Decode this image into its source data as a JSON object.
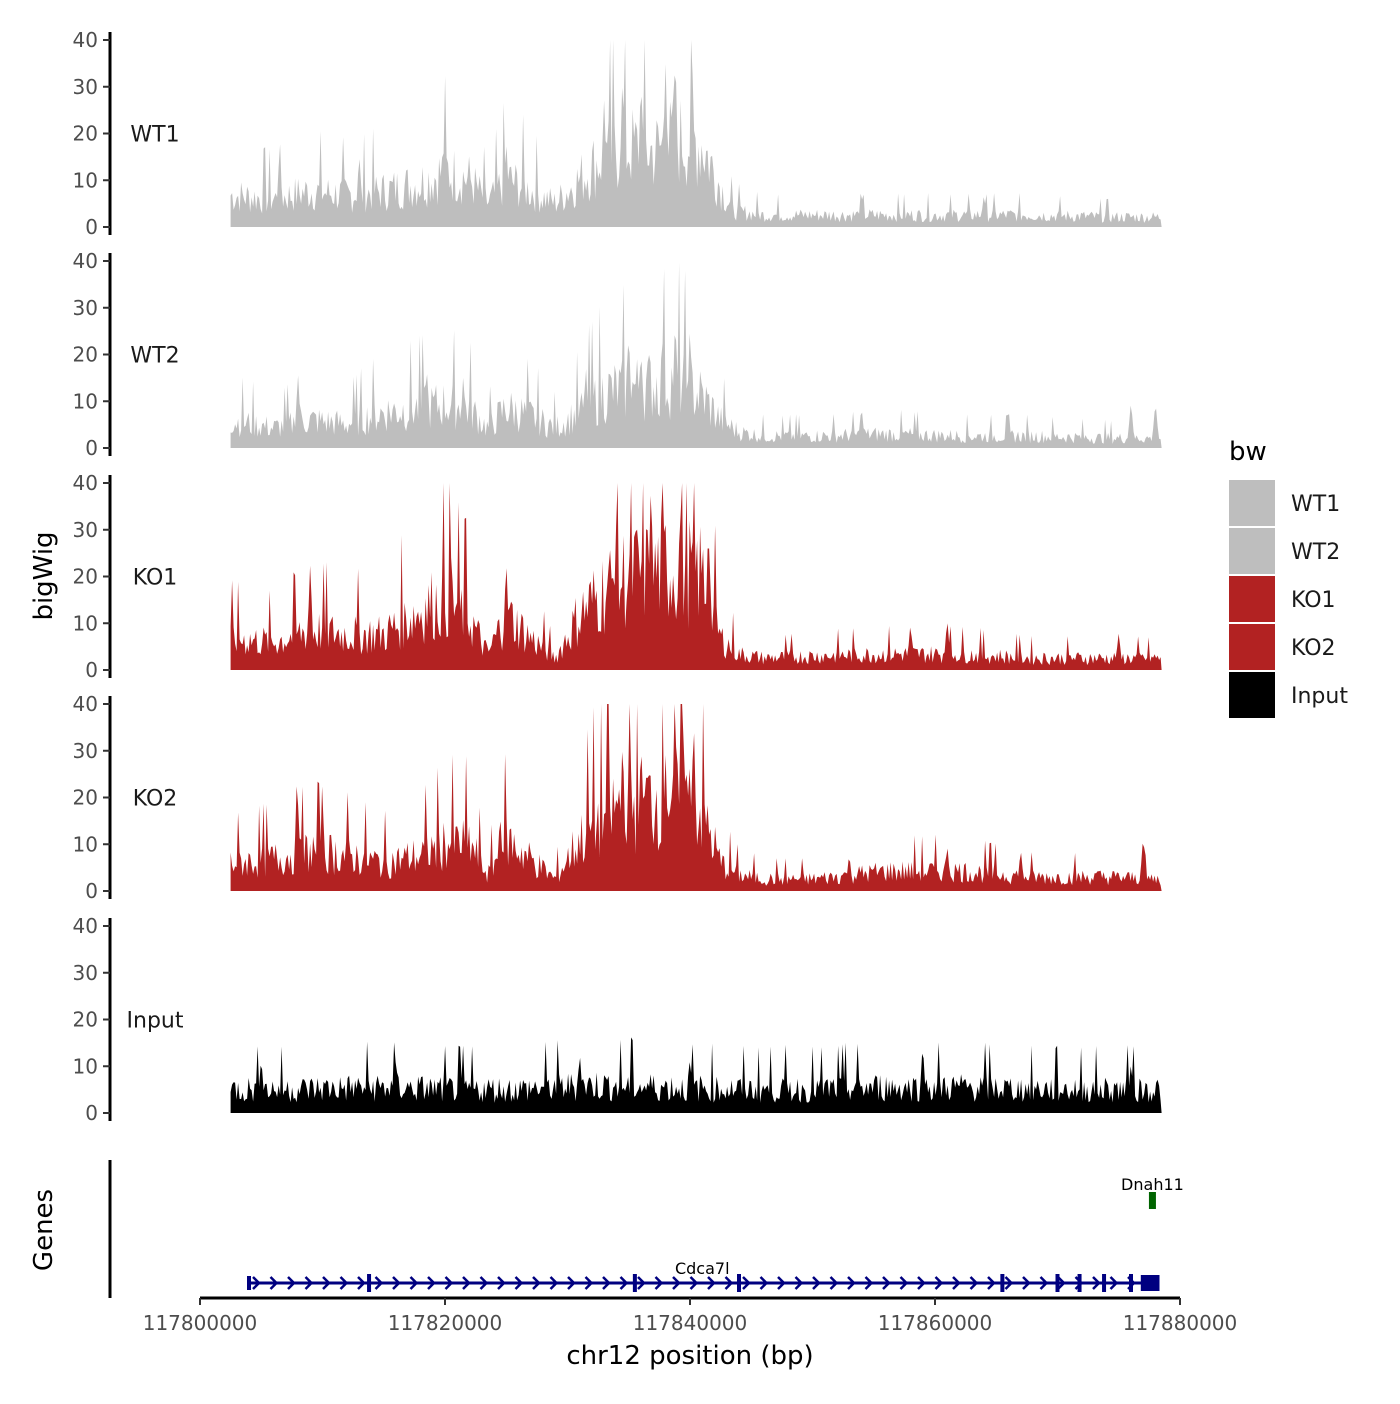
{
  "chart_data": {
    "type": "area",
    "title": "",
    "xlabel": "chr12 position (bp)",
    "ylabel": "bigWig",
    "genes_label": "Genes",
    "xlim": [
      117800000,
      117880000
    ],
    "x_ticks": [
      117800000,
      117820000,
      117840000,
      117860000,
      117880000
    ],
    "x_tick_labels": [
      "117800000",
      "117820000",
      "117840000",
      "117860000",
      "117880000"
    ],
    "ylim": [
      0,
      40
    ],
    "y_ticks": [
      0,
      10,
      20,
      30,
      40
    ],
    "y_tick_labels": [
      "0",
      "10",
      "20",
      "30",
      "40"
    ],
    "data_range": [
      117802500,
      117878500
    ],
    "legend": {
      "title": "bw",
      "position": "right",
      "entries": [
        {
          "label": "WT1",
          "color": "#bebebe"
        },
        {
          "label": "WT2",
          "color": "#bebebe"
        },
        {
          "label": "KO1",
          "color": "#b22222"
        },
        {
          "label": "KO2",
          "color": "#b22222"
        },
        {
          "label": "Input",
          "color": "#000000"
        }
      ]
    },
    "tracks": [
      {
        "name": "WT1",
        "color": "#bebebe",
        "profile": [
          {
            "x": 117802500,
            "y": 8
          },
          {
            "x": 117806000,
            "y": 7
          },
          {
            "x": 117809000,
            "y": 9
          },
          {
            "x": 117812000,
            "y": 8
          },
          {
            "x": 117815000,
            "y": 9
          },
          {
            "x": 117818000,
            "y": 11
          },
          {
            "x": 117820000,
            "y": 14
          },
          {
            "x": 117822000,
            "y": 12
          },
          {
            "x": 117823500,
            "y": 6
          },
          {
            "x": 117825000,
            "y": 12
          },
          {
            "x": 117827000,
            "y": 9
          },
          {
            "x": 117829000,
            "y": 6
          },
          {
            "x": 117831000,
            "y": 12
          },
          {
            "x": 117833000,
            "y": 18
          },
          {
            "x": 117835000,
            "y": 20
          },
          {
            "x": 117837000,
            "y": 19
          },
          {
            "x": 117839000,
            "y": 22
          },
          {
            "x": 117841000,
            "y": 21
          },
          {
            "x": 117842500,
            "y": 10
          },
          {
            "x": 117843500,
            "y": 4
          },
          {
            "x": 117846000,
            "y": 3
          },
          {
            "x": 117850000,
            "y": 3
          },
          {
            "x": 117856000,
            "y": 3
          },
          {
            "x": 117862000,
            "y": 3
          },
          {
            "x": 117868000,
            "y": 3
          },
          {
            "x": 117874000,
            "y": 2.5
          },
          {
            "x": 117878500,
            "y": 2.5
          }
        ],
        "peaks": [
          {
            "x": 117806500,
            "y": 17
          },
          {
            "x": 117813000,
            "y": 16
          },
          {
            "x": 117820000,
            "y": 24
          },
          {
            "x": 117825000,
            "y": 19
          },
          {
            "x": 117833000,
            "y": 28
          },
          {
            "x": 117834500,
            "y": 34
          },
          {
            "x": 117836000,
            "y": 33
          },
          {
            "x": 117838000,
            "y": 36
          },
          {
            "x": 117838800,
            "y": 39
          },
          {
            "x": 117840200,
            "y": 34
          },
          {
            "x": 117854000,
            "y": 7
          },
          {
            "x": 117864000,
            "y": 7
          }
        ]
      },
      {
        "name": "WT2",
        "color": "#bebebe",
        "profile": [
          {
            "x": 117802500,
            "y": 7
          },
          {
            "x": 117806000,
            "y": 5
          },
          {
            "x": 117809000,
            "y": 7
          },
          {
            "x": 117812000,
            "y": 6
          },
          {
            "x": 117815000,
            "y": 9
          },
          {
            "x": 117818000,
            "y": 10
          },
          {
            "x": 117820000,
            "y": 11
          },
          {
            "x": 117822000,
            "y": 10
          },
          {
            "x": 117823500,
            "y": 5
          },
          {
            "x": 117825000,
            "y": 10
          },
          {
            "x": 117827000,
            "y": 8
          },
          {
            "x": 117829000,
            "y": 5
          },
          {
            "x": 117831000,
            "y": 9
          },
          {
            "x": 117833000,
            "y": 14
          },
          {
            "x": 117835000,
            "y": 15
          },
          {
            "x": 117837000,
            "y": 16
          },
          {
            "x": 117839000,
            "y": 17
          },
          {
            "x": 117841000,
            "y": 13
          },
          {
            "x": 117842500,
            "y": 7
          },
          {
            "x": 117844000,
            "y": 4
          },
          {
            "x": 117846000,
            "y": 3
          },
          {
            "x": 117850000,
            "y": 3
          },
          {
            "x": 117856000,
            "y": 3.5
          },
          {
            "x": 117862000,
            "y": 3
          },
          {
            "x": 117868000,
            "y": 3
          },
          {
            "x": 117874000,
            "y": 2.5
          },
          {
            "x": 117878500,
            "y": 2.5
          }
        ],
        "peaks": [
          {
            "x": 117808000,
            "y": 16
          },
          {
            "x": 117818500,
            "y": 18
          },
          {
            "x": 117821500,
            "y": 16
          },
          {
            "x": 117831500,
            "y": 18
          },
          {
            "x": 117835000,
            "y": 26
          },
          {
            "x": 117836000,
            "y": 22
          },
          {
            "x": 117837800,
            "y": 25
          },
          {
            "x": 117838800,
            "y": 29
          },
          {
            "x": 117840000,
            "y": 27
          },
          {
            "x": 117854000,
            "y": 9
          },
          {
            "x": 117876000,
            "y": 10
          },
          {
            "x": 117878000,
            "y": 10
          }
        ]
      },
      {
        "name": "KO1",
        "color": "#b22222",
        "profile": [
          {
            "x": 117802500,
            "y": 8
          },
          {
            "x": 117806000,
            "y": 7
          },
          {
            "x": 117809000,
            "y": 10
          },
          {
            "x": 117812000,
            "y": 9
          },
          {
            "x": 117815000,
            "y": 9
          },
          {
            "x": 117818000,
            "y": 15
          },
          {
            "x": 117820000,
            "y": 18
          },
          {
            "x": 117822000,
            "y": 13
          },
          {
            "x": 117823500,
            "y": 4
          },
          {
            "x": 117825000,
            "y": 14
          },
          {
            "x": 117827000,
            "y": 8
          },
          {
            "x": 117829000,
            "y": 3
          },
          {
            "x": 117831000,
            "y": 14
          },
          {
            "x": 117833000,
            "y": 20
          },
          {
            "x": 117835000,
            "y": 24
          },
          {
            "x": 117837000,
            "y": 25
          },
          {
            "x": 117839000,
            "y": 26
          },
          {
            "x": 117841000,
            "y": 24
          },
          {
            "x": 117842500,
            "y": 8
          },
          {
            "x": 117844000,
            "y": 4
          },
          {
            "x": 117846000,
            "y": 3
          },
          {
            "x": 117850000,
            "y": 3.5
          },
          {
            "x": 117856000,
            "y": 4
          },
          {
            "x": 117862000,
            "y": 4
          },
          {
            "x": 117868000,
            "y": 3
          },
          {
            "x": 117874000,
            "y": 3
          },
          {
            "x": 117878500,
            "y": 3
          }
        ],
        "peaks": [
          {
            "x": 117809000,
            "y": 23
          },
          {
            "x": 117820500,
            "y": 24
          },
          {
            "x": 117825000,
            "y": 24
          },
          {
            "x": 117834000,
            "y": 34
          },
          {
            "x": 117835500,
            "y": 35
          },
          {
            "x": 117836800,
            "y": 39
          },
          {
            "x": 117838000,
            "y": 32
          },
          {
            "x": 117839200,
            "y": 37
          },
          {
            "x": 117841500,
            "y": 32
          },
          {
            "x": 117858000,
            "y": 10
          },
          {
            "x": 117861000,
            "y": 11
          },
          {
            "x": 117875000,
            "y": 8
          }
        ]
      },
      {
        "name": "KO2",
        "color": "#b22222",
        "profile": [
          {
            "x": 117802500,
            "y": 7
          },
          {
            "x": 117806000,
            "y": 8
          },
          {
            "x": 117809000,
            "y": 10
          },
          {
            "x": 117812000,
            "y": 9
          },
          {
            "x": 117815000,
            "y": 7
          },
          {
            "x": 117818000,
            "y": 9
          },
          {
            "x": 117820000,
            "y": 12
          },
          {
            "x": 117822000,
            "y": 12
          },
          {
            "x": 117823500,
            "y": 4
          },
          {
            "x": 117825000,
            "y": 13
          },
          {
            "x": 117827000,
            "y": 8
          },
          {
            "x": 117829000,
            "y": 3
          },
          {
            "x": 117831000,
            "y": 13
          },
          {
            "x": 117833000,
            "y": 19
          },
          {
            "x": 117835000,
            "y": 22
          },
          {
            "x": 117837000,
            "y": 23
          },
          {
            "x": 117839000,
            "y": 25
          },
          {
            "x": 117841000,
            "y": 20
          },
          {
            "x": 117842500,
            "y": 7
          },
          {
            "x": 117844000,
            "y": 4
          },
          {
            "x": 117846000,
            "y": 3
          },
          {
            "x": 117850000,
            "y": 3
          },
          {
            "x": 117856000,
            "y": 5
          },
          {
            "x": 117862000,
            "y": 5
          },
          {
            "x": 117868000,
            "y": 3.5
          },
          {
            "x": 117874000,
            "y": 3.5
          },
          {
            "x": 117878500,
            "y": 3
          }
        ],
        "peaks": [
          {
            "x": 117808000,
            "y": 19
          },
          {
            "x": 117810000,
            "y": 20
          },
          {
            "x": 117824500,
            "y": 17
          },
          {
            "x": 117834500,
            "y": 34
          },
          {
            "x": 117836000,
            "y": 33
          },
          {
            "x": 117838000,
            "y": 30
          },
          {
            "x": 117839500,
            "y": 34
          },
          {
            "x": 117840300,
            "y": 38
          },
          {
            "x": 117853000,
            "y": 8
          },
          {
            "x": 117861000,
            "y": 10
          },
          {
            "x": 117867000,
            "y": 9
          },
          {
            "x": 117877000,
            "y": 12
          }
        ]
      },
      {
        "name": "Input",
        "color": "#000000",
        "profile": [
          {
            "x": 117802500,
            "y": 6
          },
          {
            "x": 117808000,
            "y": 6
          },
          {
            "x": 117814000,
            "y": 6.5
          },
          {
            "x": 117820000,
            "y": 6
          },
          {
            "x": 117826000,
            "y": 6
          },
          {
            "x": 117832000,
            "y": 7
          },
          {
            "x": 117838000,
            "y": 6.5
          },
          {
            "x": 117844000,
            "y": 6
          },
          {
            "x": 117850000,
            "y": 6
          },
          {
            "x": 117856000,
            "y": 6.5
          },
          {
            "x": 117862000,
            "y": 6.5
          },
          {
            "x": 117868000,
            "y": 6
          },
          {
            "x": 117874000,
            "y": 6
          },
          {
            "x": 117878500,
            "y": 6
          }
        ],
        "peaks": [
          {
            "x": 117805000,
            "y": 12
          },
          {
            "x": 117816000,
            "y": 12
          },
          {
            "x": 117831000,
            "y": 13
          },
          {
            "x": 117840000,
            "y": 12
          },
          {
            "x": 117859000,
            "y": 15
          },
          {
            "x": 117876000,
            "y": 11
          }
        ]
      }
    ],
    "genes": [
      {
        "name": "Cdca7l",
        "start": 117804000,
        "end": 117878000,
        "strand": "+",
        "color": "#000080",
        "row": 0
      },
      {
        "name": "Dnah11",
        "start": 117877500,
        "end": 117878000,
        "strand": "+",
        "color": "#006400",
        "row": 1
      }
    ]
  }
}
